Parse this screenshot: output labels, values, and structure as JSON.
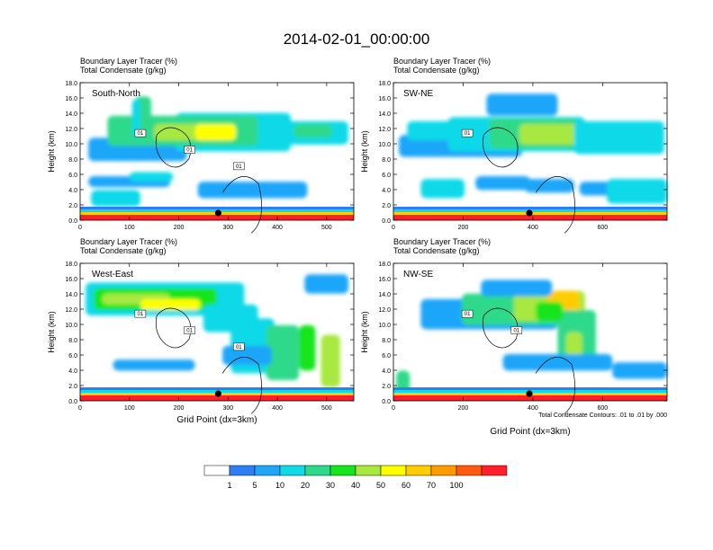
{
  "title": "2014-02-01_00:00:00",
  "colorbar": {
    "colors": [
      "#ffffff",
      "#2e7ff5",
      "#1fa6f9",
      "#11d9e8",
      "#2fd98a",
      "#15e51a",
      "#a8e840",
      "#ffff00",
      "#ffcc00",
      "#ff9a00",
      "#ff5a10",
      "#ff1f2a"
    ],
    "labels": [
      "1",
      "5",
      "10",
      "20",
      "30",
      "40",
      "50",
      "60",
      "70",
      "100"
    ]
  },
  "contour_note": "Total Condensate Contours: .01 to .01 by .000",
  "chart_data": [
    {
      "type": "heatmap",
      "title": "Boundary Layer Tracer   (%)",
      "subtitle": "Total Condensate   (g/kg)",
      "panel_label": "South-North",
      "xlabel": "",
      "ylabel": "Height (km)",
      "xlim": [
        0,
        555
      ],
      "ylim": [
        0,
        18
      ],
      "xticks": [
        "0",
        "100",
        "200",
        "300",
        "400",
        "500"
      ],
      "yticks": [
        "0.0",
        "2.0",
        "4.0",
        "6.0",
        "8.0",
        "10.0",
        "12.0",
        "14.0",
        "16.0",
        "18.0"
      ],
      "marker_x": 280,
      "contour_labels": [
        "01",
        "01",
        "01"
      ]
    },
    {
      "type": "heatmap",
      "title": "Boundary Layer Tracer   (%)",
      "subtitle": "Total Condensate   (g/kg)",
      "panel_label": "SW-NE",
      "xlabel": "",
      "ylabel": "Height (km)",
      "xlim": [
        0,
        785
      ],
      "ylim": [
        0,
        18
      ],
      "xticks": [
        "0",
        "200",
        "400",
        "600"
      ],
      "yticks": [
        "0.0",
        "2.0",
        "4.0",
        "6.0",
        "8.0",
        "10.0",
        "12.0",
        "14.0",
        "16.0",
        "18.0"
      ],
      "marker_x": 390,
      "contour_labels": [
        "01"
      ]
    },
    {
      "type": "heatmap",
      "title": "Boundary Layer Tracer   (%)",
      "subtitle": "Total Condensate   (g/kg)",
      "panel_label": "West-East",
      "xlabel": "Grid Point (dx=3km)",
      "ylabel": "Height (km)",
      "xlim": [
        0,
        555
      ],
      "ylim": [
        0,
        18
      ],
      "xticks": [
        "0",
        "100",
        "200",
        "300",
        "400",
        "500"
      ],
      "yticks": [
        "0.0",
        "2.0",
        "4.0",
        "6.0",
        "8.0",
        "10.0",
        "12.0",
        "14.0",
        "16.0",
        "18.0"
      ],
      "marker_x": 280,
      "contour_labels": [
        "01",
        "01",
        "01"
      ]
    },
    {
      "type": "heatmap",
      "title": "Boundary Layer Tracer   (%)",
      "subtitle": "Total Condensate   (g/kg)",
      "panel_label": "NW-SE",
      "xlabel": "Grid Point (dx=3km)",
      "ylabel": "Height (km)",
      "xlim": [
        0,
        785
      ],
      "ylim": [
        0,
        18
      ],
      "xticks": [
        "0",
        "200",
        "400",
        "600"
      ],
      "yticks": [
        "0.0",
        "2.0",
        "4.0",
        "6.0",
        "8.0",
        "10.0",
        "12.0",
        "14.0",
        "16.0",
        "18.0"
      ],
      "marker_x": 390,
      "contour_labels": [
        "01",
        "01"
      ]
    }
  ]
}
